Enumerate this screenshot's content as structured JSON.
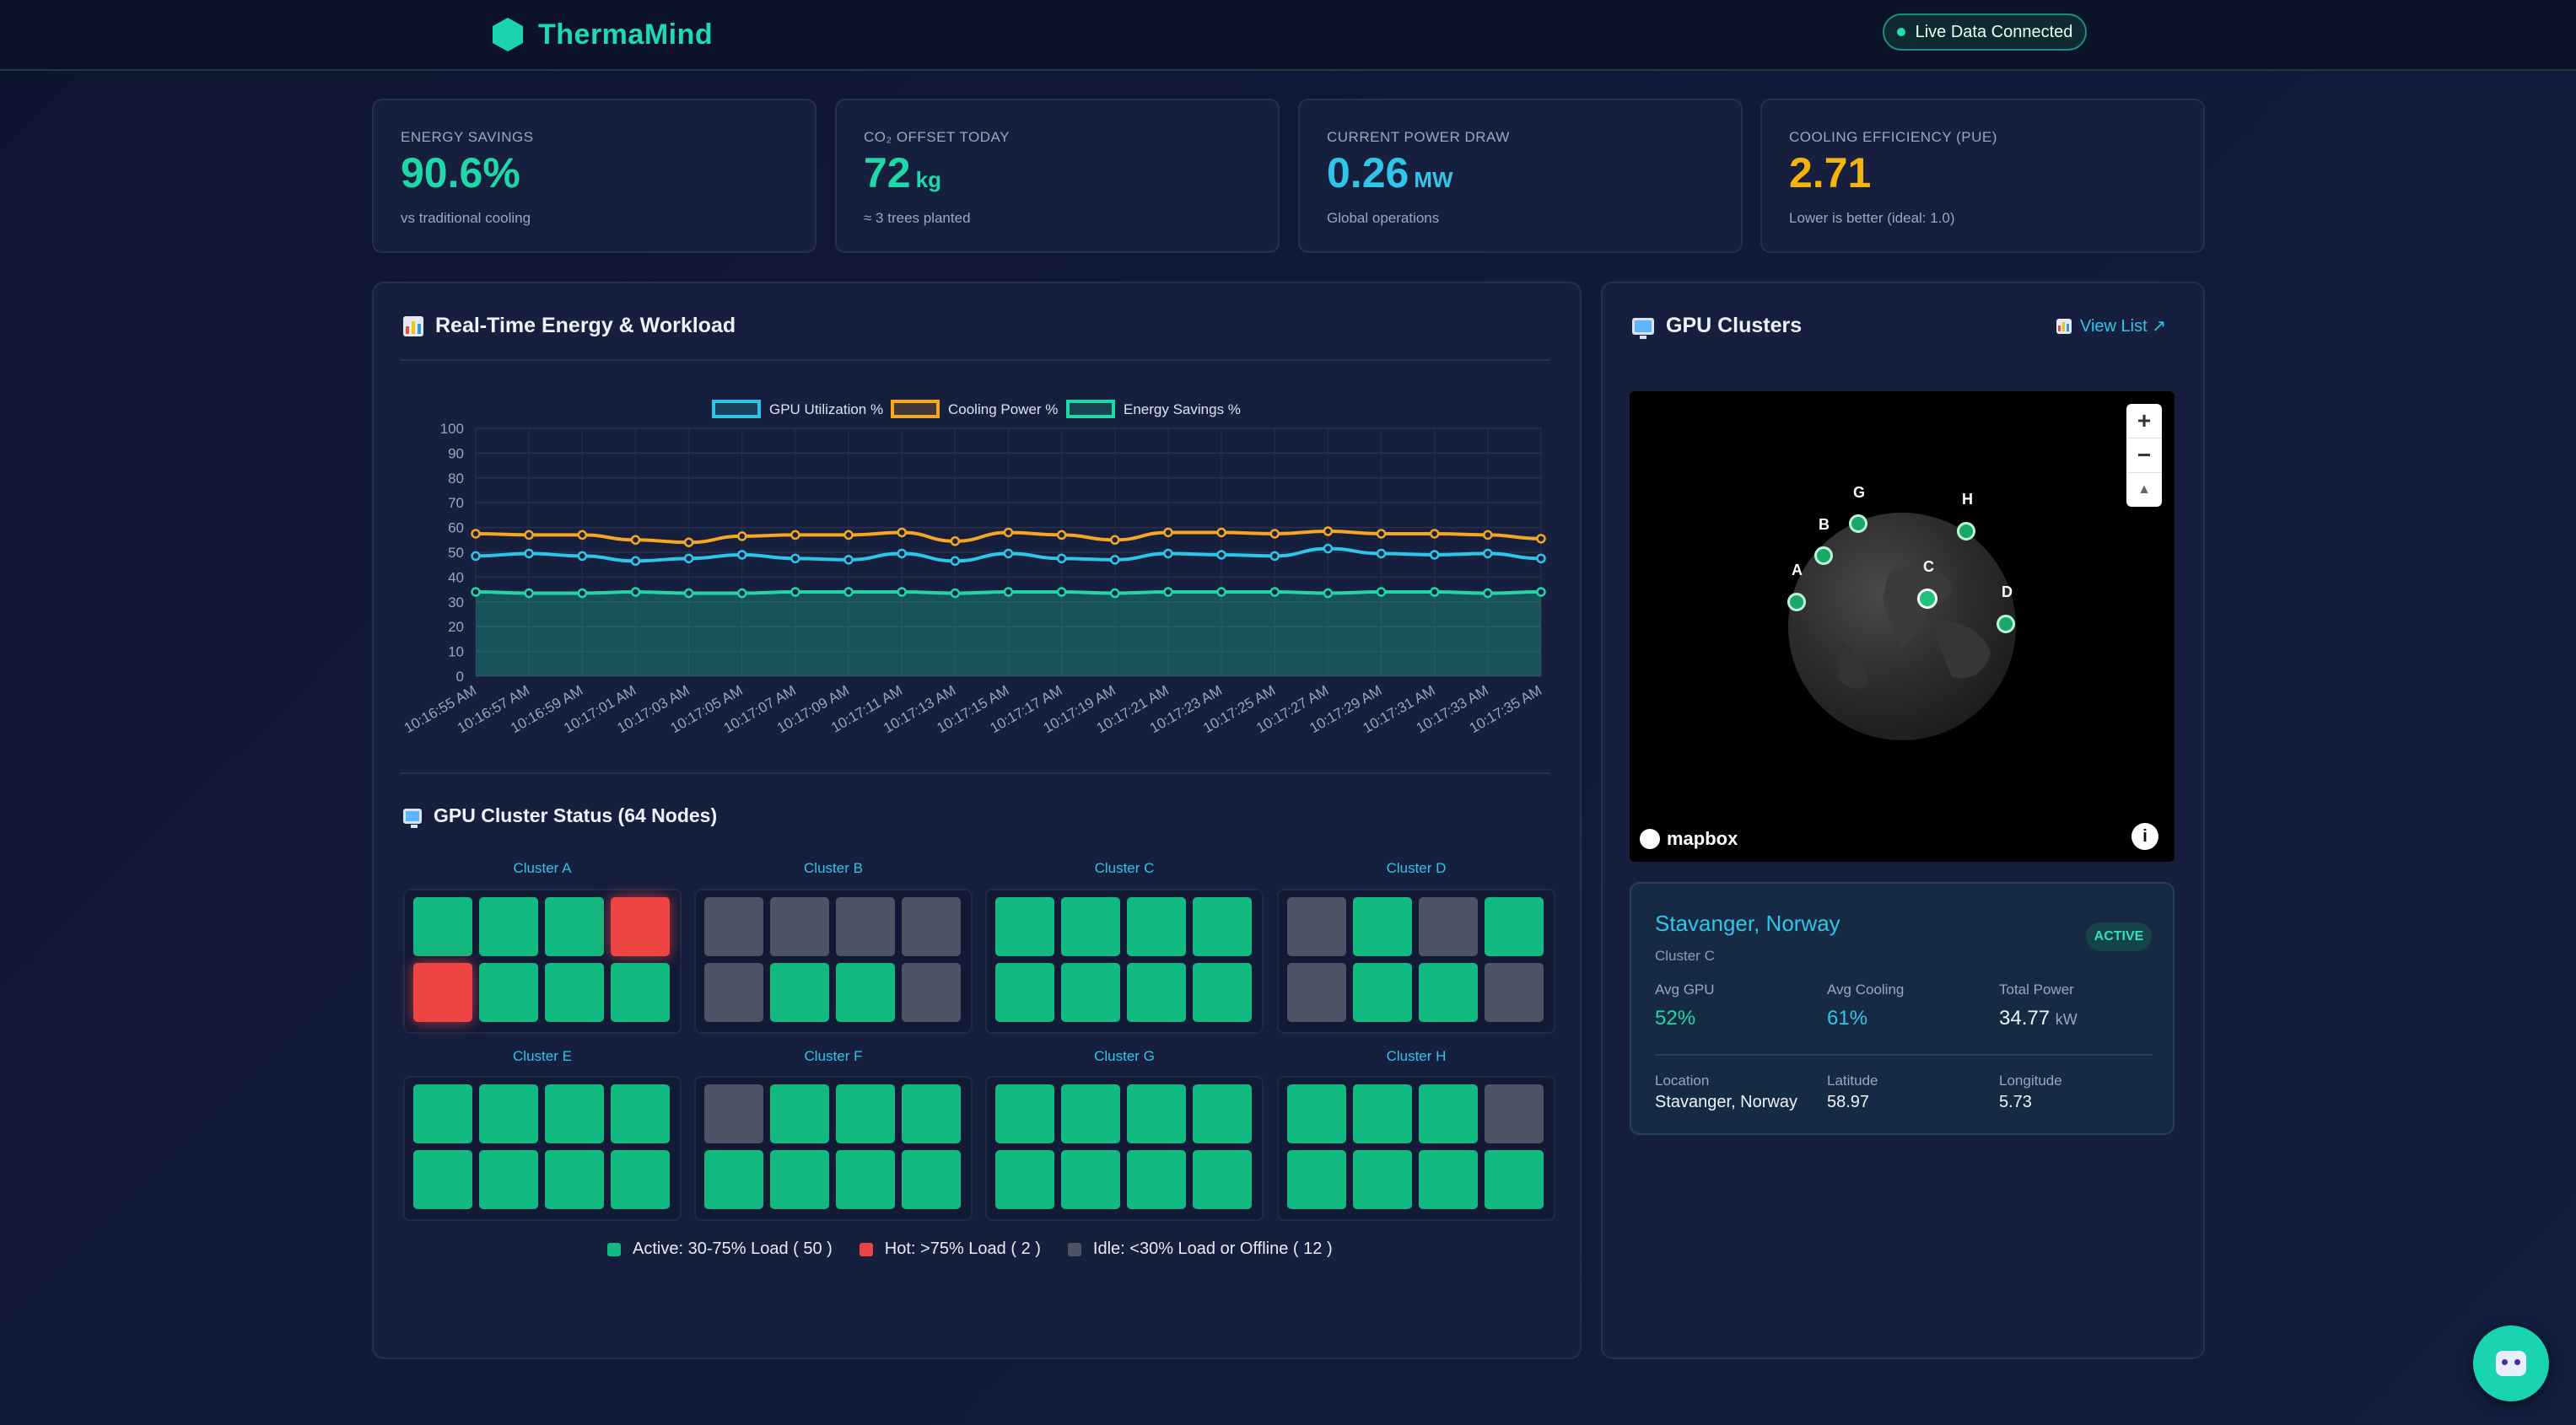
{
  "app": {
    "name": "ThermaMind",
    "status": "Live Data Connected"
  },
  "kpis": [
    {
      "label": "ENERGY SAVINGS",
      "value": "90.6%",
      "unit": "",
      "sub": "vs traditional cooling",
      "color": "#1fd8a8"
    },
    {
      "label": "CO₂ OFFSET TODAY",
      "value": "72",
      "unit": "kg",
      "sub": "≈ 3 trees planted",
      "color": "#1fd8a8"
    },
    {
      "label": "CURRENT POWER DRAW",
      "value": "0.26",
      "unit": "MW",
      "sub": "Global operations",
      "color": "#2fc6e8"
    },
    {
      "label": "COOLING EFFICIENCY (PUE)",
      "value": "2.71",
      "unit": "",
      "sub": "Lower is better (ideal: 1.0)",
      "color": "#f5b30b"
    }
  ],
  "energy_panel": {
    "title": "Real-Time Energy & Workload"
  },
  "chart_data": {
    "type": "line",
    "legend_position": "top-center",
    "grid": true,
    "ylim": [
      0,
      100
    ],
    "yticks": [
      0,
      10,
      20,
      30,
      40,
      50,
      60,
      70,
      80,
      90,
      100
    ],
    "x": [
      "10:16:55 AM",
      "10:16:57 AM",
      "10:16:59 AM",
      "10:17:01 AM",
      "10:17:03 AM",
      "10:17:05 AM",
      "10:17:07 AM",
      "10:17:09 AM",
      "10:17:11 AM",
      "10:17:13 AM",
      "10:17:15 AM",
      "10:17:17 AM",
      "10:17:19 AM",
      "10:17:21 AM",
      "10:17:23 AM",
      "10:17:25 AM",
      "10:17:27 AM",
      "10:17:29 AM",
      "10:17:31 AM",
      "10:17:33 AM",
      "10:17:35 AM"
    ],
    "series": [
      {
        "name": "GPU Utilization %",
        "color": "#2ec5ea",
        "values": [
          48.5,
          49.5,
          48.5,
          46.5,
          47.5,
          49,
          47.5,
          47,
          49.5,
          46.5,
          49.5,
          47.5,
          47,
          49.5,
          49,
          48.5,
          51.5,
          49.5,
          49,
          49.5,
          47.5
        ]
      },
      {
        "name": "Cooling Power %",
        "color": "#f5a623",
        "values": [
          57.5,
          57,
          57,
          55,
          54,
          56.5,
          57,
          57,
          58,
          54.5,
          58,
          57,
          55,
          58,
          58,
          57.5,
          58.5,
          57.5,
          57.5,
          57,
          55.5
        ]
      },
      {
        "name": "Energy Savings %",
        "color": "#1fd8a8",
        "fill": true,
        "values": [
          34,
          33.5,
          33.5,
          34,
          33.5,
          33.5,
          34,
          34,
          34,
          33.5,
          34,
          34,
          33.5,
          34,
          34,
          34,
          33.5,
          34,
          34,
          33.5,
          34
        ]
      }
    ]
  },
  "cluster_status": {
    "title": "GPU Cluster Status (64 Nodes)",
    "clusters": [
      {
        "name": "Cluster A",
        "nodes": [
          "active",
          "active",
          "active",
          "hot",
          "hot",
          "active",
          "active",
          "active"
        ]
      },
      {
        "name": "Cluster B",
        "nodes": [
          "idle",
          "idle",
          "idle",
          "idle",
          "idle",
          "active",
          "active",
          "idle"
        ]
      },
      {
        "name": "Cluster C",
        "nodes": [
          "active",
          "active",
          "active",
          "active",
          "active",
          "active",
          "active",
          "active"
        ]
      },
      {
        "name": "Cluster D",
        "nodes": [
          "idle",
          "active",
          "idle",
          "active",
          "idle",
          "active",
          "active",
          "idle"
        ]
      },
      {
        "name": "Cluster E",
        "nodes": [
          "active",
          "active",
          "active",
          "active",
          "active",
          "active",
          "active",
          "active"
        ]
      },
      {
        "name": "Cluster F",
        "nodes": [
          "idle",
          "active",
          "active",
          "active",
          "active",
          "active",
          "active",
          "active"
        ]
      },
      {
        "name": "Cluster G",
        "nodes": [
          "active",
          "active",
          "active",
          "active",
          "active",
          "active",
          "active",
          "active"
        ]
      },
      {
        "name": "Cluster H",
        "nodes": [
          "active",
          "active",
          "active",
          "idle",
          "active",
          "active",
          "active",
          "active"
        ]
      }
    ],
    "legend": [
      {
        "label": "Active: 30-75% Load (  50  )",
        "color": "#12b981"
      },
      {
        "label": "Hot: >75% Load (  2  )",
        "color": "#ef4444"
      },
      {
        "label": "Idle: <30% Load or Offline (  12  )",
        "color": "#4b5566"
      }
    ]
  },
  "gpu_panel": {
    "title": "GPU Clusters",
    "view_list": "View List ↗",
    "map": {
      "attribution": "mapbox",
      "zoom_in": "+",
      "zoom_out": "−",
      "compass": "▲",
      "info": "i",
      "markers": [
        "A",
        "B",
        "G",
        "C",
        "H",
        "D"
      ]
    }
  },
  "detail": {
    "title": "Stavanger, Norway",
    "subtitle": "Cluster C",
    "badge": "ACTIVE",
    "avg_gpu_label": "Avg GPU",
    "avg_gpu": "52%",
    "avg_cooling_label": "Avg Cooling",
    "avg_cooling": "61%",
    "total_power_label": "Total Power",
    "total_power": "34.77",
    "total_power_unit": "kW",
    "location_label": "Location",
    "location": "Stavanger, Norway",
    "latitude_label": "Latitude",
    "latitude": "58.97",
    "longitude_label": "Longitude",
    "longitude": "5.73"
  }
}
